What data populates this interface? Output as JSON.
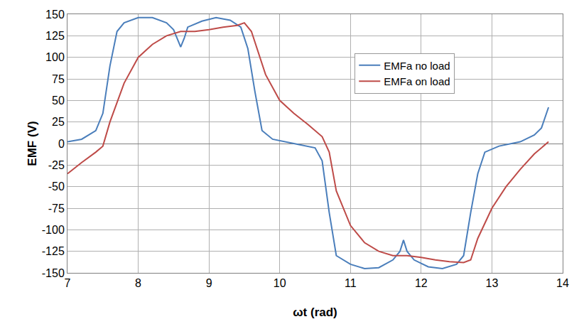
{
  "chart_data": {
    "type": "line",
    "x_label": "ωt (rad)",
    "y_label": "EMF (V)",
    "xlim": [
      7,
      14
    ],
    "xticks": [
      7,
      8,
      9,
      10,
      11,
      12,
      13,
      14
    ],
    "ylim": [
      -150,
      150
    ],
    "yticks": [
      -150,
      -125,
      -100,
      -75,
      -50,
      -25,
      0,
      25,
      50,
      75,
      100,
      125,
      150
    ],
    "grid": true,
    "legend": "upper right",
    "series": [
      {
        "name": "EMFa no load",
        "color": "#4a7ebb",
        "x": [
          7.0,
          7.2,
          7.4,
          7.5,
          7.6,
          7.7,
          7.8,
          8.0,
          8.2,
          8.4,
          8.5,
          8.6,
          8.65,
          8.7,
          8.9,
          9.1,
          9.3,
          9.45,
          9.55,
          9.65,
          9.75,
          9.9,
          10.2,
          10.5,
          10.6,
          10.7,
          10.8,
          11.0,
          11.2,
          11.4,
          11.6,
          11.7,
          11.75,
          11.8,
          11.9,
          12.1,
          12.3,
          12.5,
          12.6,
          12.7,
          12.8,
          12.9,
          13.1,
          13.4,
          13.6,
          13.7,
          13.8
        ],
        "values": [
          2,
          5,
          15,
          35,
          90,
          130,
          140,
          146,
          146,
          140,
          132,
          112,
          122,
          135,
          142,
          146,
          143,
          135,
          110,
          60,
          15,
          5,
          0,
          -5,
          -20,
          -80,
          -130,
          -140,
          -145,
          -144,
          -135,
          -125,
          -112,
          -125,
          -135,
          -143,
          -145,
          -140,
          -130,
          -80,
          -35,
          -10,
          -3,
          2,
          10,
          18,
          42
        ]
      },
      {
        "name": "EMFa on load",
        "color": "#be4b48",
        "x": [
          7.0,
          7.2,
          7.4,
          7.5,
          7.6,
          7.8,
          8.0,
          8.2,
          8.4,
          8.6,
          8.8,
          9.0,
          9.2,
          9.4,
          9.5,
          9.6,
          9.8,
          10.0,
          10.2,
          10.4,
          10.6,
          10.7,
          10.8,
          11.0,
          11.2,
          11.4,
          11.6,
          11.8,
          12.0,
          12.2,
          12.4,
          12.6,
          12.7,
          12.8,
          13.0,
          13.2,
          13.4,
          13.6,
          13.8
        ],
        "values": [
          -35,
          -22,
          -10,
          -3,
          25,
          70,
          100,
          115,
          125,
          130,
          130,
          132,
          135,
          137,
          140,
          130,
          80,
          50,
          35,
          22,
          8,
          -10,
          -55,
          -95,
          -115,
          -125,
          -130,
          -130,
          -132,
          -135,
          -137,
          -138,
          -135,
          -110,
          -75,
          -50,
          -30,
          -12,
          2
        ]
      }
    ]
  }
}
